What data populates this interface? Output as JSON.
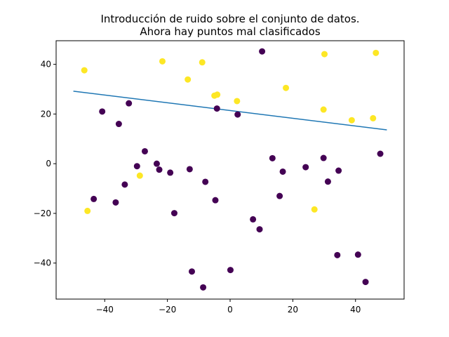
{
  "chart_data": {
    "type": "scatter",
    "title_lines": [
      "Introducción de ruido sobre el conjunto de datos.",
      "Ahora hay puntos mal clasificados"
    ],
    "xlabel": "",
    "ylabel": "",
    "xlim": [
      -55.5,
      55.5
    ],
    "ylim": [
      -54.5,
      49.5
    ],
    "grid": false,
    "xticks": [
      -40,
      -20,
      0,
      20,
      40
    ],
    "yticks": [
      -40,
      -20,
      0,
      20,
      40
    ],
    "x_tick_labels": [
      "−40",
      "−20",
      "0",
      "20",
      "40"
    ],
    "y_tick_labels": [
      "−40",
      "−20",
      "0",
      "20",
      "40"
    ],
    "colors": {
      "class_0": "#440154",
      "class_1": "#fde725",
      "line": "#1f77b4",
      "axes": "#000000"
    },
    "line": {
      "x": [
        -50,
        50
      ],
      "y": [
        29.2,
        13.6
      ]
    },
    "points": [
      {
        "x": -46.5,
        "y": 37.6,
        "c": 1
      },
      {
        "x": -45.5,
        "y": -19.0,
        "c": 1
      },
      {
        "x": -43.5,
        "y": -14.2,
        "c": 0
      },
      {
        "x": -40.8,
        "y": 21.0,
        "c": 0
      },
      {
        "x": -36.5,
        "y": -15.6,
        "c": 0
      },
      {
        "x": -35.5,
        "y": 16.0,
        "c": 0
      },
      {
        "x": -33.6,
        "y": -8.4,
        "c": 0
      },
      {
        "x": -32.3,
        "y": 24.3,
        "c": 0
      },
      {
        "x": -29.7,
        "y": -1.0,
        "c": 0
      },
      {
        "x": -28.8,
        "y": -4.8,
        "c": 1
      },
      {
        "x": -27.2,
        "y": 5.0,
        "c": 0
      },
      {
        "x": -23.4,
        "y": 0.0,
        "c": 0
      },
      {
        "x": -22.6,
        "y": -2.4,
        "c": 0
      },
      {
        "x": -21.6,
        "y": 41.2,
        "c": 1
      },
      {
        "x": -19.1,
        "y": -3.6,
        "c": 0
      },
      {
        "x": -17.8,
        "y": -19.9,
        "c": 0
      },
      {
        "x": -13.5,
        "y": 33.9,
        "c": 1
      },
      {
        "x": -12.9,
        "y": -2.2,
        "c": 0
      },
      {
        "x": -12.2,
        "y": -43.4,
        "c": 0
      },
      {
        "x": -8.9,
        "y": 40.8,
        "c": 1
      },
      {
        "x": -8.6,
        "y": -49.8,
        "c": 0
      },
      {
        "x": -7.9,
        "y": -7.3,
        "c": 0
      },
      {
        "x": -5.0,
        "y": 27.4,
        "c": 1
      },
      {
        "x": -4.7,
        "y": -14.7,
        "c": 0
      },
      {
        "x": -4.1,
        "y": 27.8,
        "c": 1
      },
      {
        "x": -4.2,
        "y": 22.2,
        "c": 0
      },
      {
        "x": 0.1,
        "y": -42.8,
        "c": 0
      },
      {
        "x": 2.2,
        "y": 25.2,
        "c": 1
      },
      {
        "x": 2.4,
        "y": 19.8,
        "c": 0
      },
      {
        "x": 7.3,
        "y": -22.4,
        "c": 0
      },
      {
        "x": 9.4,
        "y": -26.4,
        "c": 0
      },
      {
        "x": 10.2,
        "y": 45.2,
        "c": 0
      },
      {
        "x": 13.5,
        "y": 2.2,
        "c": 0
      },
      {
        "x": 15.8,
        "y": -13.0,
        "c": 0
      },
      {
        "x": 16.8,
        "y": -3.2,
        "c": 0
      },
      {
        "x": 17.8,
        "y": 30.5,
        "c": 1
      },
      {
        "x": 24.1,
        "y": -1.4,
        "c": 0
      },
      {
        "x": 26.9,
        "y": -18.4,
        "c": 1
      },
      {
        "x": 29.8,
        "y": 2.3,
        "c": 0
      },
      {
        "x": 29.8,
        "y": 21.8,
        "c": 1
      },
      {
        "x": 30.1,
        "y": 44.1,
        "c": 1
      },
      {
        "x": 31.2,
        "y": -7.2,
        "c": 0
      },
      {
        "x": 34.2,
        "y": -36.8,
        "c": 0
      },
      {
        "x": 34.6,
        "y": -2.8,
        "c": 0
      },
      {
        "x": 38.8,
        "y": 17.5,
        "c": 1
      },
      {
        "x": 40.8,
        "y": -36.6,
        "c": 0
      },
      {
        "x": 43.2,
        "y": -47.6,
        "c": 0
      },
      {
        "x": 45.6,
        "y": 18.3,
        "c": 1
      },
      {
        "x": 46.5,
        "y": 44.6,
        "c": 1
      },
      {
        "x": 47.9,
        "y": 4.0,
        "c": 0
      }
    ]
  }
}
